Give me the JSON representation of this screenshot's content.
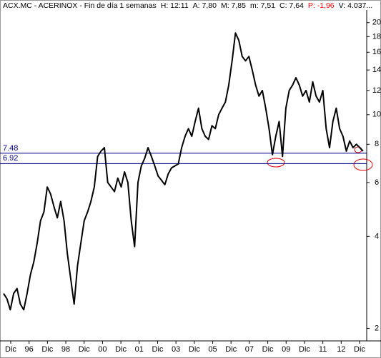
{
  "chart_data": {
    "type": "line",
    "header": [
      "ACX.MC - ACERINOX - Fin de día 1 semanas",
      "H: 12:11",
      "A: 7,80",
      "M: 7,85",
      "m: 7,51",
      "C: 7,64",
      "P: -1,96",
      "V: 4.037..."
    ],
    "header_colors": [
      "#000000",
      "#000000",
      "#000000",
      "#000000",
      "#000000",
      "#000000",
      "#ff0000",
      "#000000"
    ],
    "xtick_labels": [
      "Dic",
      "96",
      "Dic",
      "98",
      "Dic",
      "00",
      "Dic",
      "01",
      "Dic",
      "03",
      "Dic",
      "05",
      "Dic",
      "07",
      "Dic",
      "09",
      "Dic",
      "11",
      "12",
      "Dic"
    ],
    "series": [
      {
        "name": "ACX.MC",
        "color": "#000000",
        "values": [
          2.6,
          2.5,
          2.3,
          2.6,
          2.7,
          2.4,
          2.3,
          2.6,
          3.0,
          3.3,
          3.8,
          4.5,
          4.8,
          5.8,
          5.5,
          5.0,
          4.6,
          5.2,
          4.5,
          3.5,
          2.9,
          2.4,
          3.2,
          3.8,
          4.5,
          4.8,
          5.2,
          5.8,
          7.3,
          7.6,
          7.8,
          6.0,
          5.8,
          5.6,
          6.2,
          5.8,
          6.5,
          6.0,
          4.5,
          3.7,
          6.0,
          6.8,
          7.2,
          7.8,
          7.3,
          6.8,
          6.3,
          6.1,
          5.9,
          6.4,
          6.7,
          6.8,
          6.9,
          7.8,
          8.5,
          9.0,
          8.5,
          9.5,
          10.5,
          9.0,
          8.5,
          8.3,
          9.2,
          9.0,
          10.0,
          10.5,
          11.0,
          12.5,
          15.0,
          18.5,
          17.5,
          15.5,
          15.0,
          15.5,
          14.0,
          12.5,
          11.5,
          12.0,
          10.5,
          9.0,
          7.4,
          8.5,
          9.5,
          7.3,
          10.5,
          12.0,
          12.5,
          13.2,
          12.5,
          11.5,
          12.0,
          11.0,
          12.8,
          11.5,
          11.0,
          12.0,
          9.0,
          7.8,
          9.5,
          10.5,
          9.0,
          8.5,
          7.6,
          8.2,
          7.8,
          8.0,
          7.8,
          7.6
        ]
      }
    ],
    "levels": [
      {
        "value": 7.48,
        "label": "7.48",
        "color": "#00008b"
      },
      {
        "value": 6.92,
        "label": "6.92",
        "color": "#00008b"
      }
    ],
    "log_scale": true,
    "ylim": [
      1.82,
      22.0
    ],
    "yticks": [
      2,
      4,
      6,
      8,
      10,
      12,
      14,
      16,
      18,
      20
    ]
  }
}
